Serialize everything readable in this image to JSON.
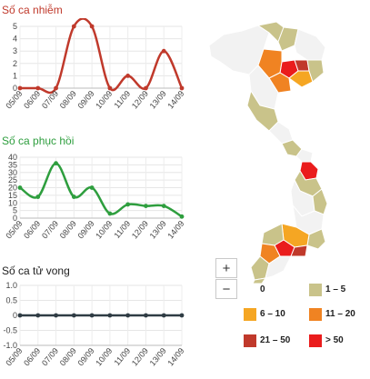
{
  "charts": {
    "infected": {
      "title": "Số ca nhiễm",
      "color": "#c0392b",
      "dates": [
        "05/09",
        "06/09",
        "07/09",
        "08/09",
        "09/09",
        "10/09",
        "11/09",
        "12/09",
        "13/09",
        "14/09"
      ],
      "values": [
        0,
        0,
        0,
        5,
        5,
        0,
        1,
        0,
        3,
        0
      ],
      "yticks": [
        "0",
        "1",
        "2",
        "3",
        "4",
        "5"
      ]
    },
    "recovered": {
      "title": "Số ca phục hồi",
      "color": "#2e9e3e",
      "dates": [
        "05/09",
        "06/09",
        "07/09",
        "08/09",
        "09/09",
        "10/09",
        "11/09",
        "12/09",
        "13/09",
        "14/09"
      ],
      "values": [
        20,
        14,
        36,
        14,
        20,
        3,
        9,
        8,
        8,
        1
      ],
      "yticks": [
        "0",
        "5",
        "10",
        "15",
        "20",
        "25",
        "30",
        "35",
        "40"
      ]
    },
    "deaths": {
      "title": "Số ca tử vong",
      "color": "#2f3c44",
      "dates": [
        "05/09",
        "06/09",
        "07/09",
        "08/09",
        "09/09",
        "10/09",
        "11/09",
        "12/09",
        "13/09",
        "14/09"
      ],
      "values": [
        0,
        0,
        0,
        0,
        0,
        0,
        0,
        0,
        0,
        0
      ],
      "yticks": [
        "-1.0",
        "-0.5",
        "0",
        "0.5",
        "1.0"
      ]
    }
  },
  "chart_data": [
    {
      "type": "line",
      "title": "Số ca nhiễm",
      "categories": [
        "05/09",
        "06/09",
        "07/09",
        "08/09",
        "09/09",
        "10/09",
        "11/09",
        "12/09",
        "13/09",
        "14/09"
      ],
      "values": [
        0,
        0,
        0,
        5,
        5,
        0,
        1,
        0,
        3,
        0
      ],
      "ylim": [
        0,
        5
      ]
    },
    {
      "type": "line",
      "title": "Số ca phục hồi",
      "categories": [
        "05/09",
        "06/09",
        "07/09",
        "08/09",
        "09/09",
        "10/09",
        "11/09",
        "12/09",
        "13/09",
        "14/09"
      ],
      "values": [
        20,
        14,
        36,
        14,
        20,
        3,
        9,
        8,
        8,
        1
      ],
      "ylim": [
        0,
        40
      ]
    },
    {
      "type": "line",
      "title": "Số ca tử vong",
      "categories": [
        "05/09",
        "06/09",
        "07/09",
        "08/09",
        "09/09",
        "10/09",
        "11/09",
        "12/09",
        "13/09",
        "14/09"
      ],
      "values": [
        0,
        0,
        0,
        0,
        0,
        0,
        0,
        0,
        0,
        0
      ],
      "ylim": [
        -1,
        1
      ]
    }
  ],
  "map": {
    "zoom_in": "+",
    "zoom_out": "−",
    "colors": {
      "zero": "#f2f2f2",
      "c1_5": "#c9c38a",
      "c6_10": "#f5a623",
      "c11_20": "#f08322",
      "c21_50": "#c0392b",
      "c50": "#ea1c1c",
      "border": "#ffffff"
    },
    "legend": [
      {
        "label": "0",
        "color": "#ffffff"
      },
      {
        "label": "1 – 5",
        "color": "#c9c38a"
      },
      {
        "label": "6 – 10",
        "color": "#f5a623"
      },
      {
        "label": "11 – 20",
        "color": "#f08322"
      },
      {
        "label": "21 – 50",
        "color": "#c0392b"
      },
      {
        "label": "> 50",
        "color": "#ea1c1c"
      }
    ]
  }
}
